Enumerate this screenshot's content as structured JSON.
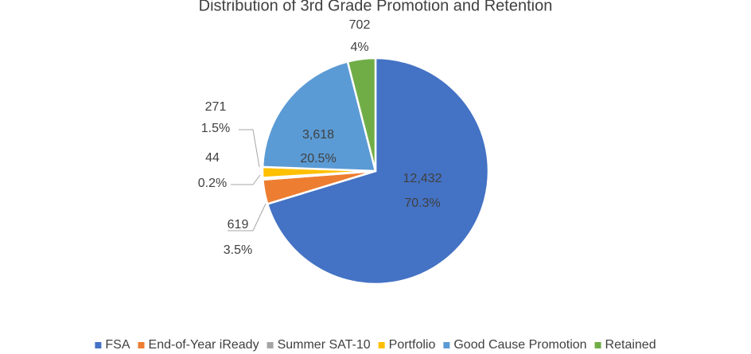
{
  "chart_data": {
    "type": "pie",
    "title": "Distribution of 3rd Grade Promotion and Retention",
    "categories": [
      "FSA",
      "End-of-Year iReady",
      "Summer SAT-10",
      "Portfolio",
      "Good Cause Promotion",
      "Retained"
    ],
    "values": [
      12432,
      619,
      44,
      271,
      3618,
      702
    ],
    "value_labels": [
      "12,432",
      "619",
      "44",
      "271",
      "3,618",
      "702"
    ],
    "percent_labels": [
      "70.3%",
      "3.5%",
      "0.2%",
      "1.5%",
      "20.5%",
      "4%"
    ],
    "colors": [
      "#4472c4",
      "#ed7d31",
      "#a5a5a5",
      "#ffc000",
      "#5b9bd5",
      "#70ad47"
    ],
    "legend": "bottom"
  }
}
